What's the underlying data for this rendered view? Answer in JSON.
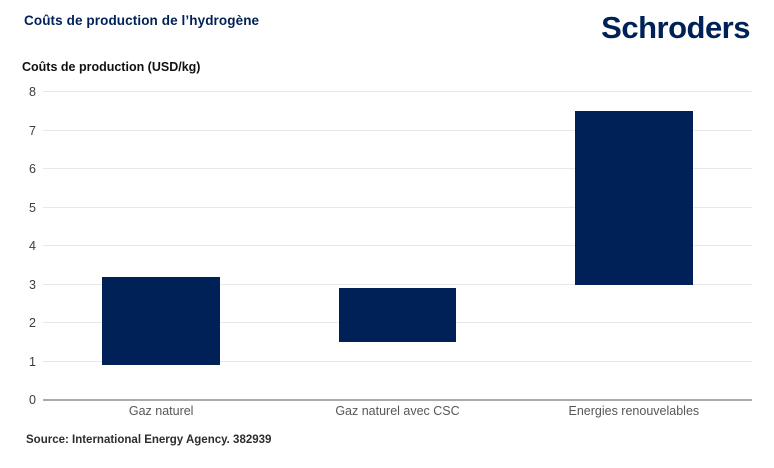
{
  "header": {
    "title": "Coûts de production de l’hydrogène",
    "logo": "Schroders"
  },
  "chart_data": {
    "type": "bar",
    "subtype": "floating-range-columns",
    "title": "Coûts de production de l’hydrogène",
    "axis_label": "Coûts de production (USD/kg)",
    "categories": [
      "Gaz naturel",
      "Gaz naturel avec CSC",
      "Energies renouvelables"
    ],
    "series": [
      {
        "name": "Coûts de production (USD/kg)",
        "ranges_low_high": [
          [
            0.9,
            3.2
          ],
          [
            1.5,
            2.9
          ],
          [
            3.0,
            7.5
          ]
        ]
      }
    ],
    "ylim": [
      0,
      8
    ],
    "ytick_step": 1,
    "grid": true,
    "legend": "none",
    "bar_color": "#002157"
  },
  "footer": {
    "source": "Source: International Energy Agency. 382939"
  },
  "colors": {
    "brand_navy": "#002157",
    "gridline": "#e8e8e8",
    "zero_line": "#ababab",
    "tick_text": "#3d3d3d",
    "category_text": "#575757",
    "source_text": "#2d2d2d",
    "background": "#ffffff"
  }
}
